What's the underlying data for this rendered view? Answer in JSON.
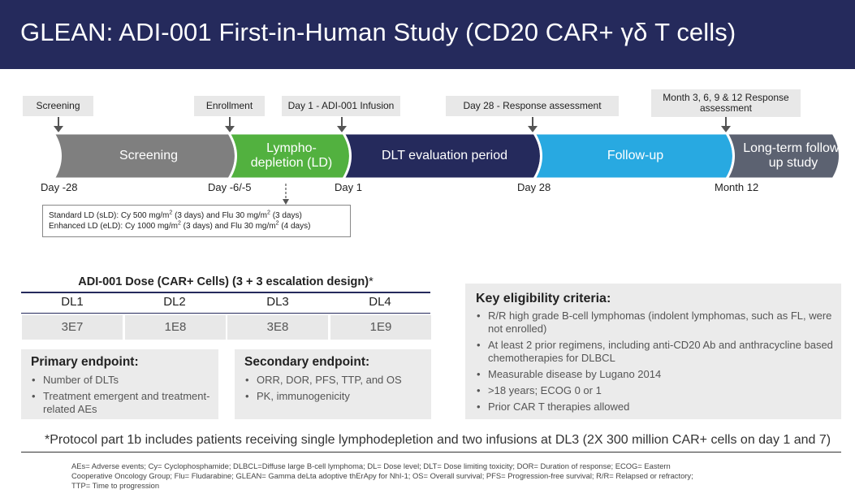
{
  "header": {
    "title": "GLEAN: ADI-001 First-in-Human Study (CD20 CAR+ γδ T cells)"
  },
  "timeline": {
    "milestones": [
      {
        "label": "Screening"
      },
      {
        "label": "Enrollment"
      },
      {
        "label": "Day 1 - ADI-001 Infusion"
      },
      {
        "label": "Day 28 - Response assessment"
      },
      {
        "label": "Month 3, 6, 9 & 12 Response assessment"
      }
    ],
    "phases": [
      {
        "label": "Screening",
        "color": "#7f7f7f"
      },
      {
        "label": "Lympho-depletion (LD)",
        "color": "#52b13f"
      },
      {
        "label": "DLT evaluation period",
        "color": "#252a5c"
      },
      {
        "label": "Follow-up",
        "color": "#28a9e1"
      },
      {
        "label": "Long-term follow-up study",
        "color": "#5c6271"
      }
    ],
    "days": [
      "Day -28",
      "Day -6/-5",
      "Day 1",
      "Day 28",
      "Month 12"
    ],
    "ld_box": {
      "line1_prefix": "Standard LD (sLD): Cy 500 mg/m",
      "line1_mid": " (3 days) and Flu 30 mg/m",
      "line1_suffix": " (3 days)",
      "line2_prefix": "Enhanced LD (eLD): Cy 1000 mg/m",
      "line2_mid": " (3 days) and Flu 30 mg/m",
      "line2_suffix": " (4 days)",
      "superscript": "2"
    }
  },
  "dose_table": {
    "title": "ADI-001 Dose (CAR+ Cells) (3 + 3 escalation design)",
    "title_marker": "*",
    "headers": [
      "DL1",
      "DL2",
      "DL3",
      "DL4"
    ],
    "values": [
      "3E7",
      "1E8",
      "3E8",
      "1E9"
    ]
  },
  "primary_endpoint": {
    "title": "Primary endpoint:",
    "items": [
      "Number of DLTs",
      "Treatment emergent and treatment-related AEs"
    ]
  },
  "secondary_endpoint": {
    "title": "Secondary endpoint:",
    "items": [
      "ORR, DOR, PFS, TTP, and OS",
      "PK, immunogenicity"
    ]
  },
  "eligibility": {
    "title": "Key eligibility criteria:",
    "items": [
      "R/R high grade B-cell lymphomas (indolent lymphomas, such as FL, were not enrolled)",
      "At least 2 prior regimens, including anti-CD20 Ab and anthracycline based chemotherapies for DLBCL",
      "Measurable disease by Lugano 2014",
      ">18 years; ECOG 0 or 1",
      "Prior CAR T therapies allowed"
    ]
  },
  "protocol_note": "*Protocol part 1b includes patients receiving single lymphodepletion and two infusions at DL3 (2X 300 million CAR+ cells on day 1 and 7)",
  "footnote": "AEs= Adverse events; Cy= Cyclophosphamide; DLBCL=Diffuse large B-cell lymphoma; DL= Dose level; DLT= Dose limiting toxicity; DOR= Duration of response; ECOG= Eastern Cooperative Oncology Group; Flu= Fludarabine; GLEAN= Gamma deLta adoptive thErApy for NhI-1; OS= Overall survival; PFS= Progression-free survival; R/R= Relapsed or refractory; TTP= Time to progression"
}
